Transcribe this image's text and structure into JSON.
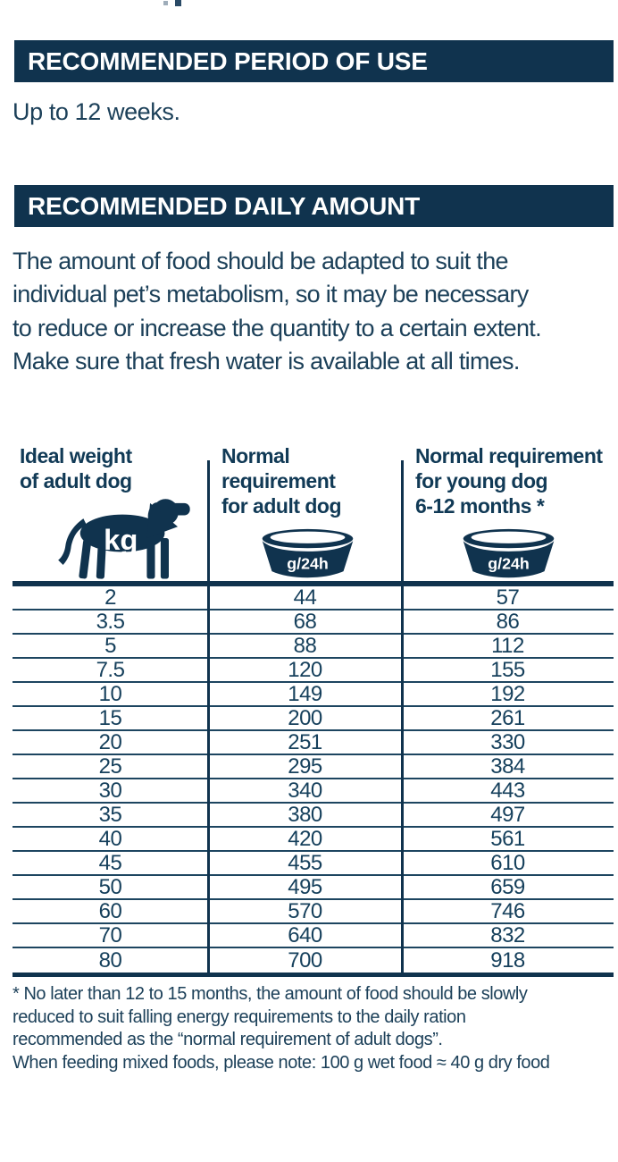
{
  "colors": {
    "navy_bar": "#10334E",
    "body_text": "#1C4059",
    "table_line": "#1D4560",
    "icon_fill": "#10334E",
    "icon_label": "#FFFFFF"
  },
  "sections": {
    "period_of_use": {
      "title": "RECOMMENDED PERIOD OF USE",
      "body": "Up to 12 weeks."
    },
    "daily_amount": {
      "title": "RECOMMENDED DAILY AMOUNT",
      "body": "The amount of food should be adapted to suit the\nindividual pet’s metabolism, so it may be necessary\nto reduce or increase the quantity to a certain extent.\nMake sure that fresh water is available at all times."
    }
  },
  "feeding_table": {
    "columns": [
      {
        "title": "Ideal weight\nof adult dog",
        "icon": "dog-icon",
        "unit": "kg"
      },
      {
        "title": "Normal\nrequirement\nfor adult dog",
        "icon": "bowl-icon",
        "unit": "g/24h"
      },
      {
        "title": "Normal requirement\nfor young dog\n6-12 months *",
        "icon": "bowl-icon",
        "unit": "g/24h"
      }
    ],
    "rows": [
      [
        "2",
        "44",
        "57"
      ],
      [
        "3.5",
        "68",
        "86"
      ],
      [
        "5",
        "88",
        "112"
      ],
      [
        "7.5",
        "120",
        "155"
      ],
      [
        "10",
        "149",
        "192"
      ],
      [
        "15",
        "200",
        "261"
      ],
      [
        "20",
        "251",
        "330"
      ],
      [
        "25",
        "295",
        "384"
      ],
      [
        "30",
        "340",
        "443"
      ],
      [
        "35",
        "380",
        "497"
      ],
      [
        "40",
        "420",
        "561"
      ],
      [
        "45",
        "455",
        "610"
      ],
      [
        "50",
        "495",
        "659"
      ],
      [
        "60",
        "570",
        "746"
      ],
      [
        "70",
        "640",
        "832"
      ],
      [
        "80",
        "700",
        "918"
      ]
    ]
  },
  "footnote": "* No later than 12 to 15 months, the amount of food should be slowly\nreduced to suit falling energy requirements to the daily ration\nrecommended as the “normal requirement of adult dogs”.\nWhen feeding mixed foods, please note: 100 g wet food ≈ 40 g dry food"
}
